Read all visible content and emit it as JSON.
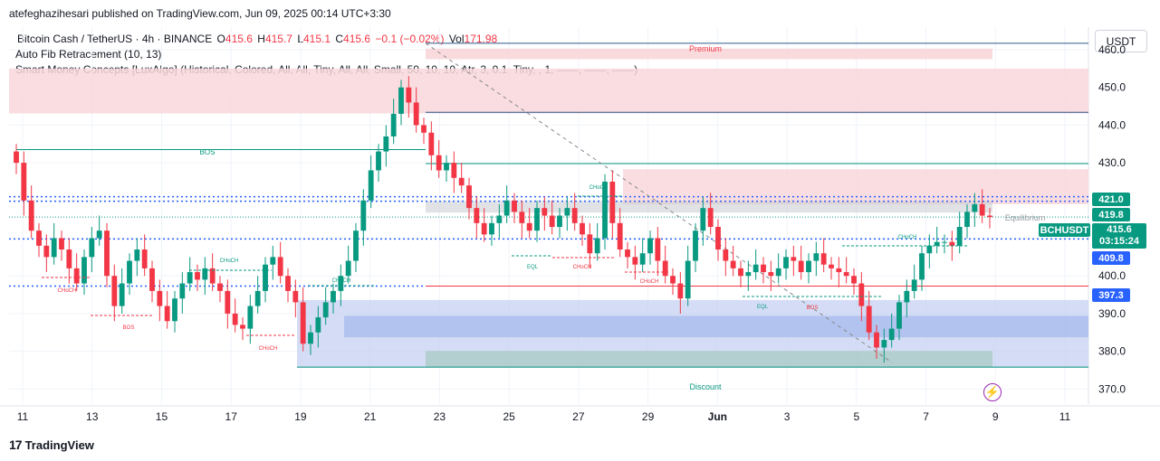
{
  "header": {
    "text": "atefeghazihesari published on TradingView.com, Jun 09, 2025 00:14 UTC+3:30"
  },
  "legend": {
    "symbol": "Bitcoin Cash / TetherUS · 4h · BINANCE",
    "o_label": "O",
    "o_value": "415.6",
    "h_label": "H",
    "h_value": "415.7",
    "l_label": "L",
    "l_value": "415.1",
    "c_label": "C",
    "c_value": "415.6",
    "change": "−0.1 (−0.02%)",
    "vol_label": "Vol",
    "vol_value": "171.98",
    "indicator1": "Auto Fib Retracement (10, 13)",
    "indicator2": "Smart Money Concepts [LuxAlgo] (Historical, Colored, All, All, Tiny, All, All, Small, 50, 10, 10, Atr, 3, 0.1, Tiny, , 1, ——, ——, ——)"
  },
  "currency": "USDT",
  "price_tags": {
    "p421": "421.0",
    "p4198": "419.8",
    "p4098": "409.8",
    "p3973": "397.3",
    "last_symbol": "BCHUSDT",
    "last_price": "415.6",
    "countdown": "03:15:24"
  },
  "footer": {
    "brand": "TradingView",
    "mark": "17"
  },
  "colors": {
    "up": "#089981",
    "down": "#f23645",
    "premium_zone": "#f8d7da",
    "discount_zone": "#b8c7ef"
  },
  "chart_data": {
    "type": "candlestick",
    "symbol": "BCHUSDT",
    "timeframe": "4h",
    "ylim": [
      366,
      466
    ],
    "y_ticks": [
      370,
      380,
      390,
      400,
      410,
      420,
      430,
      440,
      450,
      460
    ],
    "x_tick_labels": [
      "11",
      "13",
      "15",
      "17",
      "19",
      "21",
      "23",
      "25",
      "27",
      "29",
      "Jun",
      "3",
      "5",
      "7",
      "9",
      "11"
    ],
    "annotations": {
      "premium": "Premium",
      "discount": "Discount",
      "equilibrium": "Equilibrium",
      "bos_top": "BOS",
      "bos_labels": [
        "BOS",
        "BOS"
      ],
      "choch_labels": [
        "CHoCH",
        "CHoCH",
        "CHoCH",
        "CHoCH",
        "CHoCH",
        "CHoCH",
        "CHoCH",
        "CHoCH"
      ],
      "eql_labels": [
        "EQL",
        "EQL"
      ]
    },
    "levels": {
      "resistance": [
        421.0,
        419.8
      ],
      "support": [
        409.8,
        397.3
      ],
      "last": 415.6
    },
    "closes": [
      430,
      420,
      412,
      408,
      405,
      410,
      407,
      402,
      398,
      405,
      410,
      412,
      400,
      392,
      398,
      404,
      407,
      402,
      396,
      392,
      388,
      394,
      398,
      401,
      399,
      402,
      398,
      396,
      390,
      387,
      386,
      392,
      396,
      403,
      405,
      400,
      396,
      393,
      382,
      385,
      389,
      393,
      396,
      400,
      404,
      412,
      420,
      428,
      433,
      437,
      443,
      450,
      446,
      440,
      438,
      432,
      428,
      430,
      426,
      424,
      418,
      414,
      411,
      414,
      416,
      420,
      417,
      414,
      412,
      418,
      416,
      413,
      416,
      418,
      414,
      411,
      406,
      410,
      425,
      414,
      407,
      405,
      403,
      406,
      410,
      404,
      400,
      398,
      394,
      404,
      412,
      418,
      413,
      407,
      404,
      402,
      400,
      401,
      403,
      401,
      400,
      402,
      405,
      404,
      401,
      404,
      406,
      403,
      402,
      401,
      400,
      398,
      392,
      385,
      381,
      383,
      386,
      393,
      396,
      399,
      406,
      408,
      409,
      409,
      408,
      413,
      417,
      419,
      416,
      415.6
    ]
  }
}
